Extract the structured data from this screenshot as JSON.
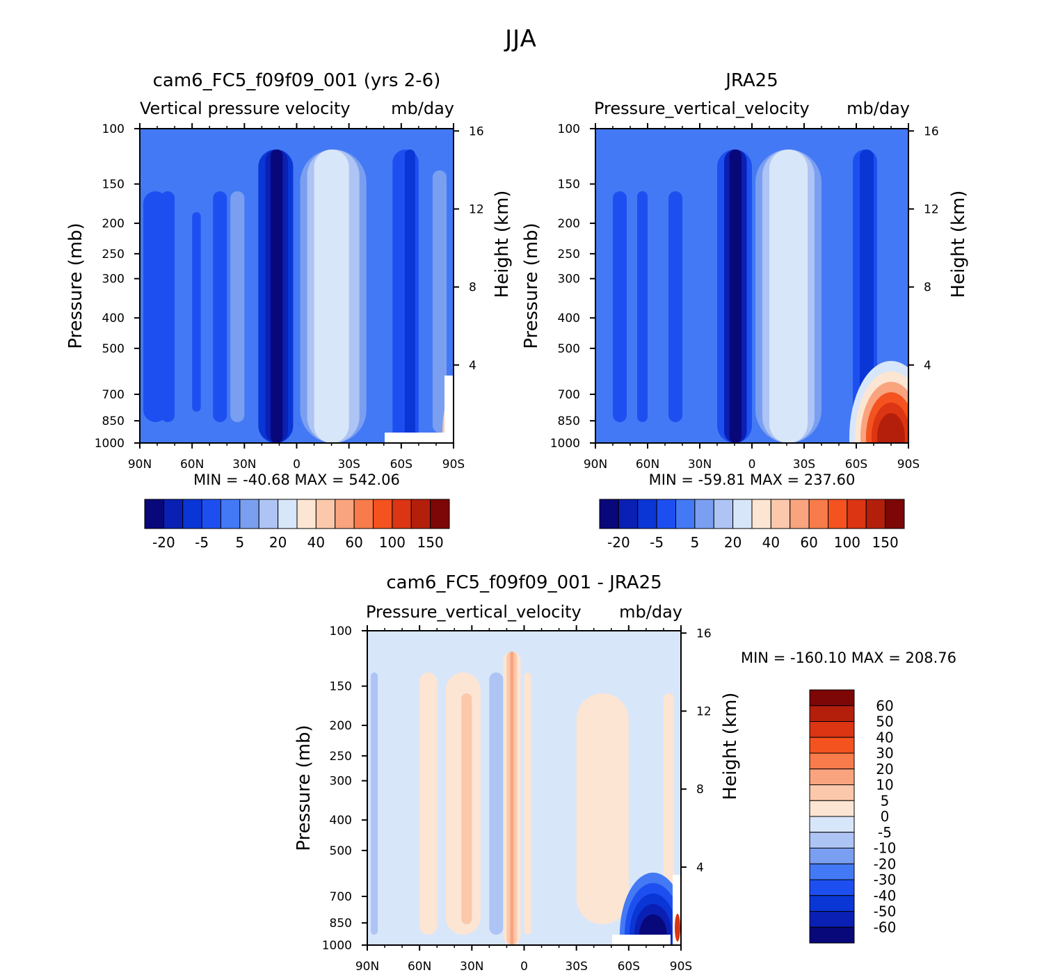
{
  "figure": {
    "title": "JJA"
  },
  "colors": {
    "abs_palette": [
      "#08087a",
      "#0a20b4",
      "#0a36d6",
      "#1d4ff0",
      "#4479f5",
      "#7b9ff0",
      "#adc4f4",
      "#d8e6fa",
      "#fce5d2",
      "#fbc8ac",
      "#f9a47f",
      "#f77b4b",
      "#f4521f",
      "#db3513",
      "#b41f0b",
      "#7d0606"
    ],
    "diff_palette": [
      "#08087a",
      "#0a20b4",
      "#0a36d6",
      "#1d4ff0",
      "#4479f5",
      "#7b9ff0",
      "#adc4f4",
      "#d8e6fa",
      "#fce5d2",
      "#fbc8ac",
      "#f9a47f",
      "#f77b4b",
      "#f4521f",
      "#db3513",
      "#b41f0b",
      "#7d0606"
    ]
  },
  "chart_data": [
    {
      "type": "heatmap",
      "title": "cam6_FC5_f09f09_001 (yrs 2-6)",
      "subtitle_left": "Vertical pressure velocity",
      "subtitle_right": "mb/day",
      "ylabel": "Pressure (mb)",
      "ylabel2": "Height (km)",
      "x_ticks": [
        "90N",
        "60N",
        "30N",
        "0",
        "30S",
        "60S",
        "90S"
      ],
      "x_values": [
        90,
        60,
        30,
        0,
        -30,
        -60,
        -90
      ],
      "y_ticks": [
        "100",
        "150",
        "200",
        "250",
        "300",
        "400",
        "500",
        "700",
        "850",
        "1000"
      ],
      "y_values": [
        100,
        150,
        200,
        250,
        300,
        400,
        500,
        700,
        850,
        1000
      ],
      "y2_ticks": [
        "16",
        "12",
        "8",
        "4"
      ],
      "y2_values": [
        16,
        12,
        8,
        4
      ],
      "ylim": [
        1000,
        100
      ],
      "xlim": [
        90,
        -90
      ],
      "stats": "MIN = -40.68   MAX = 542.06",
      "colorbar_labels": [
        "-20",
        "-5",
        "5",
        "20",
        "40",
        "60",
        "100",
        "150"
      ],
      "features": [
        {
          "type": "field",
          "lat": -30,
          "value": -5
        },
        {
          "type": "min_core",
          "lat": 10,
          "value": -40.68
        },
        {
          "type": "max_core",
          "lat": -22,
          "value": 20
        },
        {
          "type": "surface_max",
          "lat": -88,
          "value": 542.06
        }
      ]
    },
    {
      "type": "heatmap",
      "title": "JRA25",
      "subtitle_left": "Pressure_vertical_velocity",
      "subtitle_right": "mb/day",
      "ylabel": "Pressure (mb)",
      "ylabel2": "Height (km)",
      "x_ticks": [
        "90N",
        "60N",
        "30N",
        "0",
        "30S",
        "60S",
        "90S"
      ],
      "x_values": [
        90,
        60,
        30,
        0,
        -30,
        -60,
        -90
      ],
      "y_ticks": [
        "100",
        "150",
        "200",
        "250",
        "300",
        "400",
        "500",
        "700",
        "850",
        "1000"
      ],
      "y_values": [
        100,
        150,
        200,
        250,
        300,
        400,
        500,
        700,
        850,
        1000
      ],
      "y2_ticks": [
        "16",
        "12",
        "8",
        "4"
      ],
      "y2_values": [
        16,
        12,
        8,
        4
      ],
      "ylim": [
        1000,
        100
      ],
      "xlim": [
        90,
        -90
      ],
      "stats": "MIN = -59.81   MAX = 237.60",
      "colorbar_labels": [
        "-20",
        "-5",
        "5",
        "20",
        "40",
        "60",
        "100",
        "150"
      ],
      "features": [
        {
          "type": "min_core",
          "lat": 10,
          "value": -59.81
        },
        {
          "type": "max_core",
          "lat": -18,
          "value": 20
        },
        {
          "type": "surface_max",
          "lat": -80,
          "value": 237.6
        }
      ]
    },
    {
      "type": "heatmap",
      "title": "cam6_FC5_f09f09_001 - JRA25",
      "subtitle_left": "Pressure_vertical_velocity",
      "subtitle_right": "mb/day",
      "ylabel": "Pressure (mb)",
      "ylabel2": "Height (km)",
      "x_ticks": [
        "90N",
        "60N",
        "30N",
        "0",
        "30S",
        "60S",
        "90S"
      ],
      "x_values": [
        90,
        60,
        30,
        0,
        -30,
        -60,
        -90
      ],
      "y_ticks": [
        "100",
        "150",
        "200",
        "250",
        "300",
        "400",
        "500",
        "700",
        "850",
        "1000"
      ],
      "y_values": [
        100,
        150,
        200,
        250,
        300,
        400,
        500,
        700,
        850,
        1000
      ],
      "y2_ticks": [
        "16",
        "12",
        "8",
        "4"
      ],
      "y2_values": [
        16,
        12,
        8,
        4
      ],
      "ylim": [
        1000,
        100
      ],
      "xlim": [
        90,
        -90
      ],
      "stats": "MIN = -160.10   MAX = 208.76",
      "colorbar_labels": [
        "60",
        "50",
        "40",
        "30",
        "20",
        "10",
        "5",
        "0",
        "-5",
        "-10",
        "-20",
        "-30",
        "-40",
        "-50",
        "-60"
      ],
      "features": [
        {
          "type": "positive_core",
          "lat": -8,
          "value": 20
        },
        {
          "type": "surface_min",
          "lat": -75,
          "value": -160.1
        },
        {
          "type": "surface_max",
          "lat": -89,
          "value": 208.76
        }
      ]
    }
  ]
}
